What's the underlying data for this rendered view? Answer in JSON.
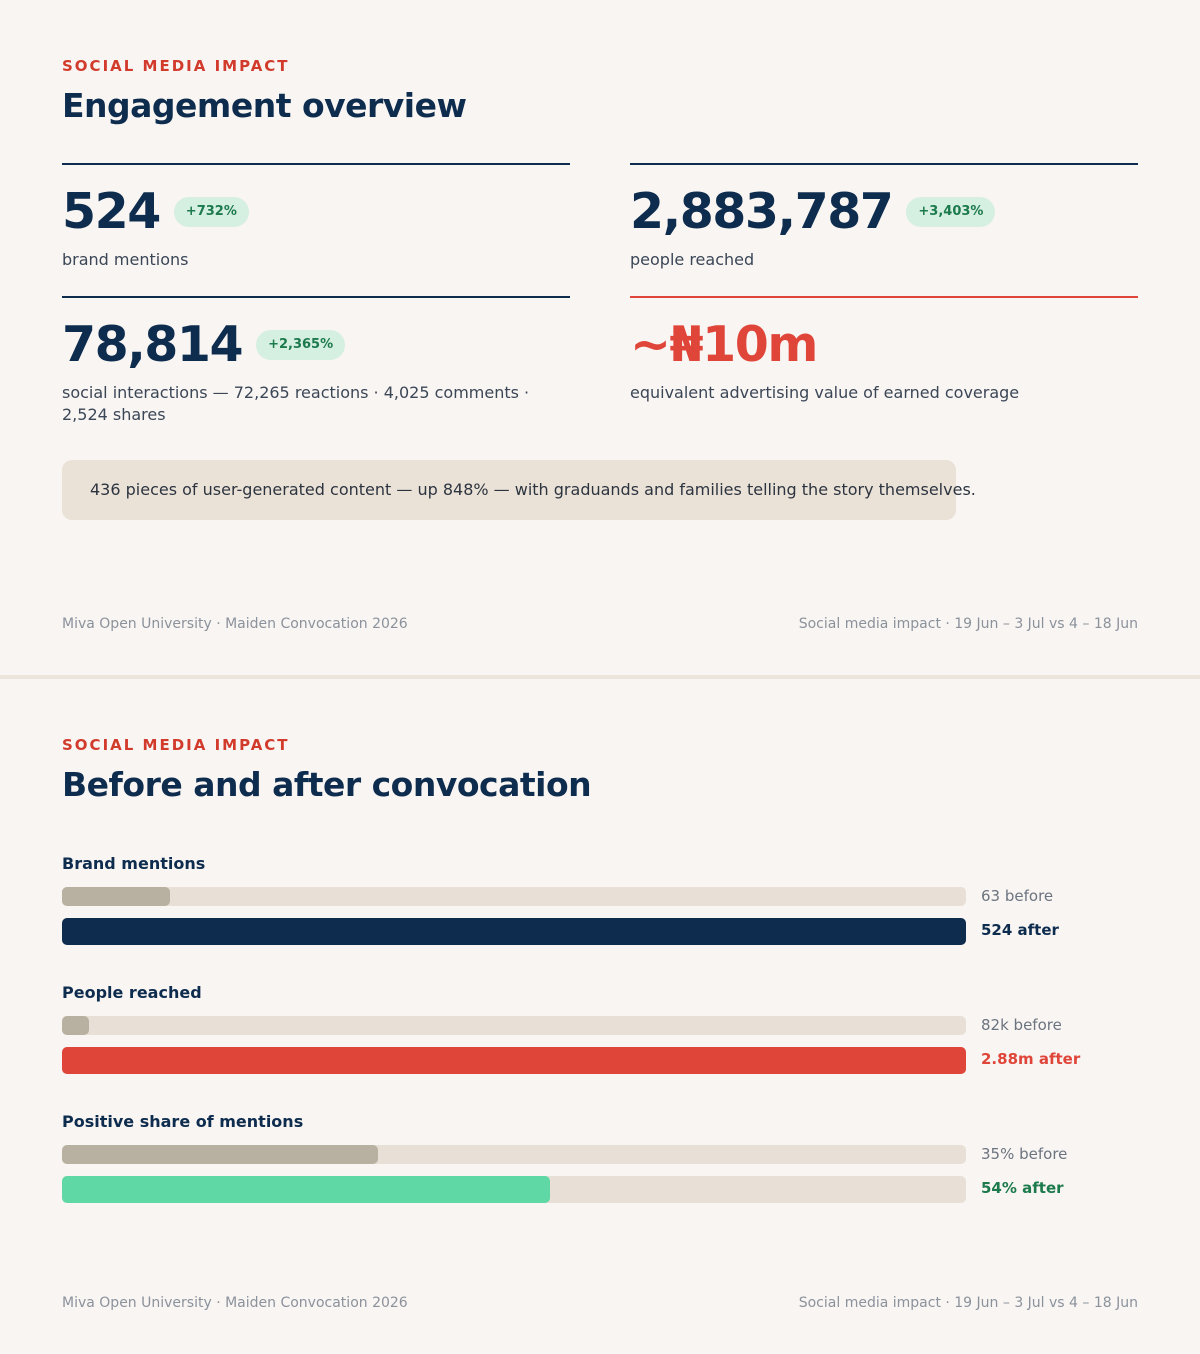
{
  "slide1": {
    "eyebrow": "SOCIAL MEDIA IMPACT",
    "title": "Engagement overview",
    "stats": [
      {
        "value": "524",
        "change": "+732%",
        "label": "brand mentions"
      },
      {
        "value": "2,883,787",
        "change": "+3,403%",
        "label": "people reached"
      },
      {
        "value": "78,814",
        "change": "+2,365%",
        "label": "social interactions — 72,265 reactions · 4,025 comments · 2,524 shares"
      },
      {
        "value": "~₦10m",
        "label": "equivalent advertising value of earned coverage"
      }
    ],
    "callout": "436 pieces of user-generated content — up 848% — with graduands and families telling the story themselves.",
    "footer_left": "Miva Open University · Maiden Convocation 2026",
    "footer_right": "Social media impact · 19 Jun – 3 Jul vs 4 – 18 Jun"
  },
  "slide2": {
    "eyebrow": "SOCIAL MEDIA IMPACT",
    "title": "Before and after convocation",
    "footer_left": "Miva Open University · Maiden Convocation 2026",
    "footer_right": "Social media impact · 19 Jun – 3 Jul vs 4 – 18 Jun"
  },
  "colors": {
    "navy": "#0e2c4e",
    "red": "#e0453a",
    "green": "#5fd8a6",
    "before_bar": "#b8b0a1",
    "track": "#e8e0d6"
  },
  "chart_data": {
    "type": "bar",
    "title": "Before and after convocation",
    "groups": [
      {
        "label": "Brand mentions",
        "before": {
          "value": 63,
          "display": "63 before",
          "fraction": 0.12
        },
        "after": {
          "value": 524,
          "display": "524 after",
          "fraction": 1.0
        },
        "after_color": "#0e2c4e",
        "after_text_color": "#0e2c4e"
      },
      {
        "label": "People reached",
        "before": {
          "value": 82000,
          "display": "82k before",
          "fraction": 0.03
        },
        "after": {
          "value": 2880000,
          "display": "2.88m after",
          "fraction": 1.0
        },
        "after_color": "#e0453a",
        "after_text_color": "#e0453a"
      },
      {
        "label": "Positive share of mentions",
        "before": {
          "value": 35,
          "display": "35% before",
          "fraction": 0.35
        },
        "after": {
          "value": 54,
          "display": "54% after",
          "fraction": 0.54
        },
        "after_color": "#5fd8a6",
        "after_text_color": "#1c7a4c"
      }
    ]
  }
}
